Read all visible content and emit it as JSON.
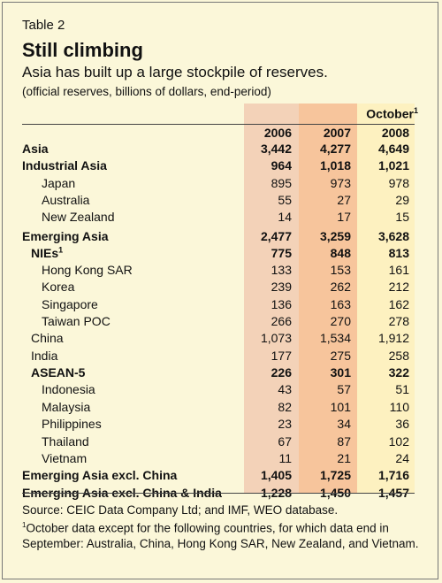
{
  "table_number": "Table 2",
  "title": "Still climbing",
  "subtitle": "Asia has built up a large stockpile of reserves.",
  "units": "(official reserves, billions of dollars, end-period)",
  "columns": {
    "c1": "2006",
    "c2": "2007",
    "c3_top": "October",
    "c3_sup": "1",
    "c3": "2008"
  },
  "rows": [
    {
      "label": "Asia",
      "v": [
        "3,442",
        "4,277",
        "4,649"
      ]
    },
    {
      "label": "Industrial Asia",
      "v": [
        "964",
        "1,018",
        "1,021"
      ]
    },
    {
      "label": "Japan",
      "v": [
        "895",
        "973",
        "978"
      ]
    },
    {
      "label": "Australia",
      "v": [
        "55",
        "27",
        "29"
      ]
    },
    {
      "label": "New Zealand",
      "v": [
        "14",
        "17",
        "15"
      ]
    },
    {
      "label": "Emerging Asia",
      "v": [
        "2,477",
        "3,259",
        "3,628"
      ]
    },
    {
      "label": "NIEs",
      "sup": "1",
      "v": [
        "775",
        "848",
        "813"
      ]
    },
    {
      "label": "Hong Kong SAR",
      "v": [
        "133",
        "153",
        "161"
      ]
    },
    {
      "label": "Korea",
      "v": [
        "239",
        "262",
        "212"
      ]
    },
    {
      "label": "Singapore",
      "v": [
        "136",
        "163",
        "162"
      ]
    },
    {
      "label": "Taiwan POC",
      "v": [
        "266",
        "270",
        "278"
      ]
    },
    {
      "label": "China",
      "v": [
        "1,073",
        "1,534",
        "1,912"
      ]
    },
    {
      "label": "India",
      "v": [
        "177",
        "275",
        "258"
      ]
    },
    {
      "label": "ASEAN-5",
      "v": [
        "226",
        "301",
        "322"
      ]
    },
    {
      "label": "Indonesia",
      "v": [
        "43",
        "57",
        "51"
      ]
    },
    {
      "label": "Malaysia",
      "v": [
        "82",
        "101",
        "110"
      ]
    },
    {
      "label": "Philippines",
      "v": [
        "23",
        "34",
        "36"
      ]
    },
    {
      "label": "Thailand",
      "v": [
        "67",
        "87",
        "102"
      ]
    },
    {
      "label": "Vietnam",
      "v": [
        "11",
        "21",
        "24"
      ]
    },
    {
      "label": "Emerging Asia excl. China",
      "v": [
        "1,405",
        "1,725",
        "1,716"
      ]
    },
    {
      "label": "Emerging Asia excl. China & India",
      "v": [
        "1,228",
        "1,450",
        "1,457"
      ]
    }
  ],
  "source": {
    "line1": "Source: CEIC Data Company Ltd; and IMF, WEO database.",
    "note_sup": "1",
    "note": "October data except for the following countries, for which data end in September: Australia, China, Hong Kong SAR, New Zealand, and Vietnam."
  }
}
